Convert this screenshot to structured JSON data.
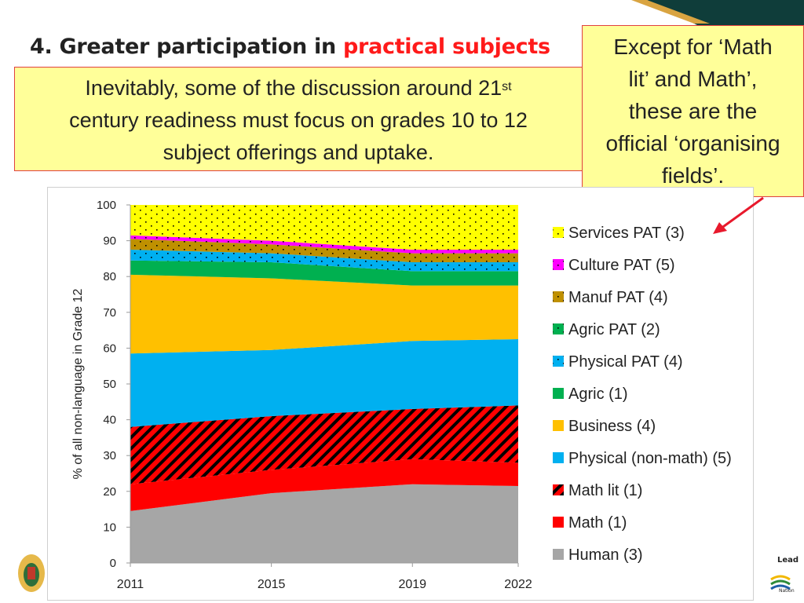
{
  "slide": {
    "title_prefix": "4. Greater participation in ",
    "title_highlight": "practical subjects",
    "intro_line1": "Inevitably, some of the discussion around 21",
    "intro_sup": "st",
    "intro_line2": "century readiness must focus on grades 10 to 12",
    "intro_line3": "subject offerings and uptake.",
    "callout_lines": [
      "Except for ‘Math",
      "lit’ and Math’,",
      "these are the",
      "official ‘organising",
      "fields’."
    ],
    "footer_lead": "Lead",
    "footer_nation": "Nation"
  },
  "colors": {
    "highlight": "#ff1a1a",
    "box_fill": "#ffff99",
    "box_border": "#e04040",
    "arrow": "#e8192c"
  },
  "chart_data": {
    "type": "area",
    "stacked": true,
    "x": [
      2011,
      2015,
      2019,
      2022
    ],
    "ylabel": "% of all non-language in Grade 12",
    "ylim": [
      0,
      100
    ],
    "yticks": [
      0,
      10,
      20,
      30,
      40,
      50,
      60,
      70,
      80,
      90,
      100
    ],
    "legend_position": "right",
    "series": [
      {
        "name": "Human (3)",
        "values": [
          14.5,
          19.5,
          22.0,
          21.5
        ],
        "color": "#a6a6a6",
        "pattern": "solid"
      },
      {
        "name": "Math (1)",
        "values": [
          7.5,
          6.5,
          7.0,
          6.5
        ],
        "color": "#ff0000",
        "pattern": "solid"
      },
      {
        "name": "Math lit (1)",
        "values": [
          16.0,
          15.0,
          14.0,
          16.0
        ],
        "color": "#ff0000",
        "pattern": "hatch"
      },
      {
        "name": "Physical (non-math) (5)",
        "values": [
          20.5,
          18.5,
          19.0,
          18.5
        ],
        "color": "#00b0f0",
        "pattern": "solid"
      },
      {
        "name": "Business (4)",
        "values": [
          22.0,
          20.0,
          15.5,
          15.0
        ],
        "color": "#ffc000",
        "pattern": "solid"
      },
      {
        "name": "Agric (1)",
        "values": [
          4.0,
          4.5,
          4.0,
          4.0
        ],
        "color": "#00b050",
        "pattern": "solid"
      },
      {
        "name": "Physical PAT (4)",
        "values": [
          3.0,
          2.5,
          2.5,
          2.5
        ],
        "color": "#00b0f0",
        "pattern": "dots"
      },
      {
        "name": "Agric PAT (2)",
        "values": [
          0.0,
          0.0,
          0.0,
          0.0
        ],
        "color": "#00b050",
        "pattern": "dots"
      },
      {
        "name": "Manuf PAT (4)",
        "values": [
          3.0,
          2.5,
          2.5,
          2.5
        ],
        "color": "#bf9000",
        "pattern": "dots"
      },
      {
        "name": "Culture PAT (5)",
        "values": [
          1.0,
          1.0,
          1.0,
          1.0
        ],
        "color": "#ff00ff",
        "pattern": "dots"
      },
      {
        "name": "Services PAT (3)",
        "values": [
          8.5,
          10.0,
          12.5,
          12.5
        ],
        "color": "#ffff00",
        "pattern": "dots"
      }
    ]
  }
}
